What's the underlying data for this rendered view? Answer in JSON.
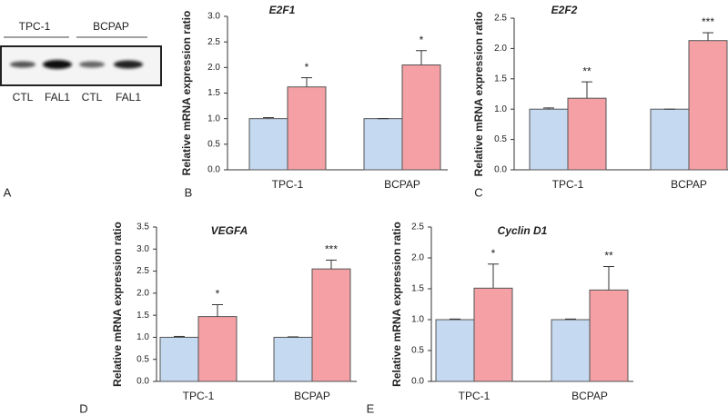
{
  "blot": {
    "panel_label": "A",
    "groups": [
      "TPC-1",
      "BCPAP"
    ],
    "lanes": [
      "CTL",
      "FAL1",
      "CTL",
      "FAL1"
    ]
  },
  "chart_data": [
    {
      "type": "bar",
      "panel_label": "B",
      "title": "E2F1",
      "ylabel": "Relative mRNA expression ratio",
      "categories": [
        "TPC-1",
        "BCPAP"
      ],
      "series": [
        {
          "color": "#c5d9f0",
          "values": [
            1.0,
            1.0
          ],
          "errors": [
            0.02,
            0.0
          ]
        },
        {
          "color": "#f4a0a4",
          "values": [
            1.62,
            2.05
          ],
          "errors": [
            0.18,
            0.28
          ],
          "significance": [
            "*",
            "*"
          ]
        }
      ],
      "ylim": [
        0,
        3
      ],
      "yticks": [
        {
          "value": 0,
          "label": "0.0"
        },
        {
          "value": 0.5,
          "label": "0.5"
        },
        {
          "value": 1,
          "label": "1.0"
        },
        {
          "value": 1.5,
          "label": "1.5"
        },
        {
          "value": 2,
          "label": "2.0"
        },
        {
          "value": 2.5,
          "label": "2.5"
        },
        {
          "value": 3,
          "label": "3.0"
        }
      ]
    },
    {
      "type": "bar",
      "panel_label": "C",
      "title": "E2F2",
      "ylabel": "Relative mRNA expression ratio",
      "categories": [
        "TPC-1",
        "BCPAP"
      ],
      "series": [
        {
          "color": "#c5d9f0",
          "values": [
            1.0,
            1.0
          ],
          "errors": [
            0.02,
            0.0
          ]
        },
        {
          "color": "#f4a0a4",
          "values": [
            1.18,
            2.13
          ],
          "errors": [
            0.27,
            0.13
          ],
          "significance": [
            "**",
            "***"
          ]
        }
      ],
      "ylim": [
        0,
        2.5
      ],
      "yticks": [
        {
          "value": 0,
          "label": "0.0"
        },
        {
          "value": 0.5,
          "label": "0.5"
        },
        {
          "value": 1,
          "label": "1.0"
        },
        {
          "value": 1.5,
          "label": "1.5"
        },
        {
          "value": 2,
          "label": "2.0"
        },
        {
          "value": 2.5,
          "label": "2.5"
        }
      ]
    },
    {
      "type": "bar",
      "panel_label": "D",
      "title": "VEGFA",
      "ylabel": "Relative mRNA expression ratio",
      "categories": [
        "TPC-1",
        "BCPAP"
      ],
      "series": [
        {
          "color": "#c5d9f0",
          "values": [
            1.0,
            1.0
          ],
          "errors": [
            0.02,
            0.01
          ]
        },
        {
          "color": "#f4a0a4",
          "values": [
            1.47,
            2.55
          ],
          "errors": [
            0.27,
            0.2
          ],
          "significance": [
            "*",
            "***"
          ]
        }
      ],
      "ylim": [
        0,
        3.5
      ],
      "yticks": [
        {
          "value": 0,
          "label": "0.0"
        },
        {
          "value": 0.5,
          "label": "0.5"
        },
        {
          "value": 1,
          "label": "1.0"
        },
        {
          "value": 1.5,
          "label": "1.5"
        },
        {
          "value": 2,
          "label": "2.0"
        },
        {
          "value": 2.5,
          "label": "2.5"
        },
        {
          "value": 3,
          "label": "3.0"
        },
        {
          "value": 3.5,
          "label": "3.5"
        }
      ]
    },
    {
      "type": "bar",
      "panel_label": "E",
      "title": "Cyclin  D1",
      "ylabel": "Relative mRNA expression ratio",
      "categories": [
        "TPC-1",
        "BCPAP"
      ],
      "series": [
        {
          "color": "#c5d9f0",
          "values": [
            1.0,
            1.0
          ],
          "errors": [
            0.01,
            0.01
          ]
        },
        {
          "color": "#f4a0a4",
          "values": [
            1.51,
            1.48
          ],
          "errors": [
            0.39,
            0.38
          ],
          "significance": [
            "*",
            "**"
          ]
        }
      ],
      "ylim": [
        0,
        2.5
      ],
      "yticks": [
        {
          "value": 0,
          "label": "0.0"
        },
        {
          "value": 0.5,
          "label": "0.5"
        },
        {
          "value": 1,
          "label": "1.0"
        },
        {
          "value": 1.5,
          "label": "1.5"
        },
        {
          "value": 2,
          "label": "2.0"
        },
        {
          "value": 2.5,
          "label": "2.5"
        }
      ]
    }
  ]
}
